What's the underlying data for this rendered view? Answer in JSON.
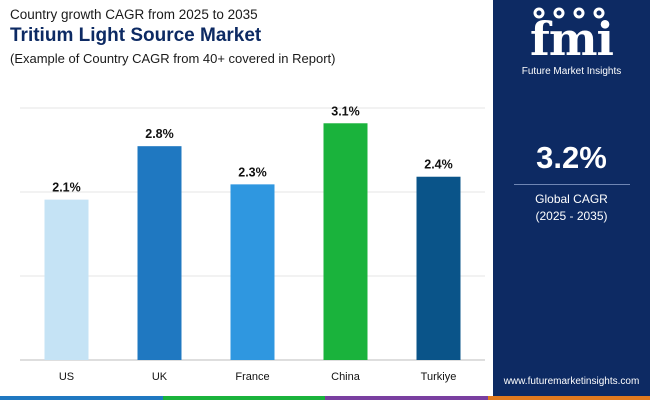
{
  "header": {
    "subtitle": "Country growth CAGR from 2025 to 2035",
    "title": "Tritium Light Source Market",
    "note": "(Example of Country CAGR from 40+ covered in Report)"
  },
  "chart_data": {
    "type": "bar",
    "title": "Tritium Light Source Market",
    "categories": [
      "US",
      "UK",
      "France",
      "China",
      "Turkiye"
    ],
    "values": [
      2.1,
      2.8,
      2.3,
      3.1,
      2.4
    ],
    "value_labels": [
      "2.1%",
      "2.8%",
      "2.3%",
      "3.1%",
      "2.4%"
    ],
    "colors": [
      "#c5e3f5",
      "#1f78c1",
      "#2f97e0",
      "#1ab33c",
      "#0a5489"
    ],
    "ylim": [
      0,
      3.3
    ],
    "grid": true,
    "xlabel": "",
    "ylabel": ""
  },
  "brand": {
    "logo_mark": "fmi",
    "logo_text": "Future Market Insights",
    "url": "www.futuremarketinsights.com"
  },
  "stat": {
    "value": "3.2%",
    "label": "Global CAGR",
    "period": "(2025 - 2035)"
  },
  "colors": {
    "panel": "#0d2a63",
    "strip": [
      "#1f78c1",
      "#1ab33c",
      "#7a3fa0",
      "#e07a1f"
    ]
  }
}
